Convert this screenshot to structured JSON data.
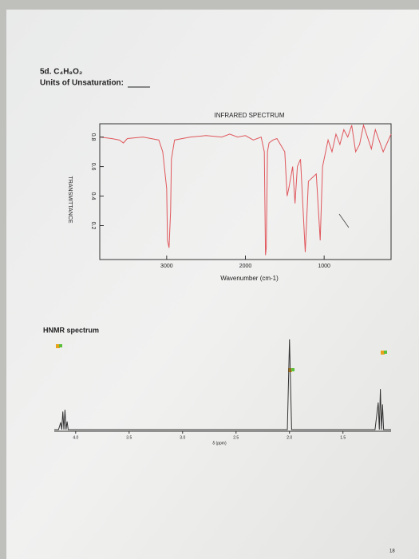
{
  "header": {
    "title": "5d. C₄H₈O₂",
    "prompt": "Units of Unsaturation:"
  },
  "footer": {
    "page_number": "18"
  },
  "chart_data": [
    {
      "type": "line",
      "title": "INFRARED SPECTRUM",
      "x_label": "Wavenumber (cm-1)",
      "y_label": "TRANSMITTANCE",
      "x": [
        3850,
        3700,
        3600,
        3550,
        3500,
        3300,
        3100,
        3050,
        3000,
        2990,
        2970,
        2950,
        2940,
        2900,
        2700,
        2500,
        2300,
        2200,
        2100,
        2000,
        1900,
        1800,
        1760,
        1745,
        1735,
        1720,
        1700,
        1650,
        1600,
        1500,
        1470,
        1450,
        1400,
        1370,
        1340,
        1300,
        1240,
        1200,
        1100,
        1050,
        1020,
        950,
        900,
        850,
        800,
        750,
        700,
        650,
        600,
        550,
        500,
        400,
        350,
        250,
        150
      ],
      "values": [
        0.8,
        0.79,
        0.78,
        0.76,
        0.79,
        0.8,
        0.78,
        0.7,
        0.45,
        0.1,
        0.05,
        0.3,
        0.65,
        0.78,
        0.8,
        0.81,
        0.8,
        0.82,
        0.8,
        0.81,
        0.78,
        0.8,
        0.7,
        0.0,
        0.05,
        0.7,
        0.76,
        0.78,
        0.79,
        0.7,
        0.4,
        0.45,
        0.6,
        0.35,
        0.6,
        0.65,
        0.02,
        0.5,
        0.55,
        0.1,
        0.6,
        0.78,
        0.7,
        0.82,
        0.75,
        0.85,
        0.8,
        0.88,
        0.7,
        0.75,
        0.88,
        0.72,
        0.85,
        0.7,
        0.82
      ],
      "color": "#e0575c",
      "xlim": [
        3850,
        150
      ],
      "ylim": [
        -0.03,
        0.89
      ],
      "xticks": [
        3000,
        2000,
        1000
      ],
      "yticks": [
        0.2,
        0.4,
        0.6,
        0.8
      ]
    },
    {
      "type": "line",
      "title": "HNMR spectrum",
      "x_label": "δ (ppm)",
      "x": [
        4.2,
        4.16,
        4.14,
        4.13,
        4.12,
        4.11,
        4.1,
        4.09,
        4.08,
        4.07,
        2.02,
        2.0,
        1.98,
        1.2,
        1.17,
        1.16,
        1.15,
        1.14,
        1.13,
        1.12,
        1.05
      ],
      "values": [
        0,
        0,
        8,
        0,
        20,
        0,
        22,
        0,
        9,
        0,
        0,
        100,
        0,
        0,
        30,
        0,
        45,
        0,
        28,
        0,
        0
      ],
      "color": "#333333",
      "xlim": [
        4.2,
        1.05
      ],
      "ylim": [
        0,
        100
      ],
      "xticks": [
        {
          "value": 4,
          "label": "4.0"
        },
        {
          "value": 3.5,
          "label": "3.5"
        },
        {
          "value": 3,
          "label": "3.0"
        },
        {
          "value": 2.5,
          "label": "2.5"
        },
        {
          "value": 2,
          "label": "2.0"
        },
        {
          "value": 1.5,
          "label": "1.5"
        }
      ]
    }
  ]
}
